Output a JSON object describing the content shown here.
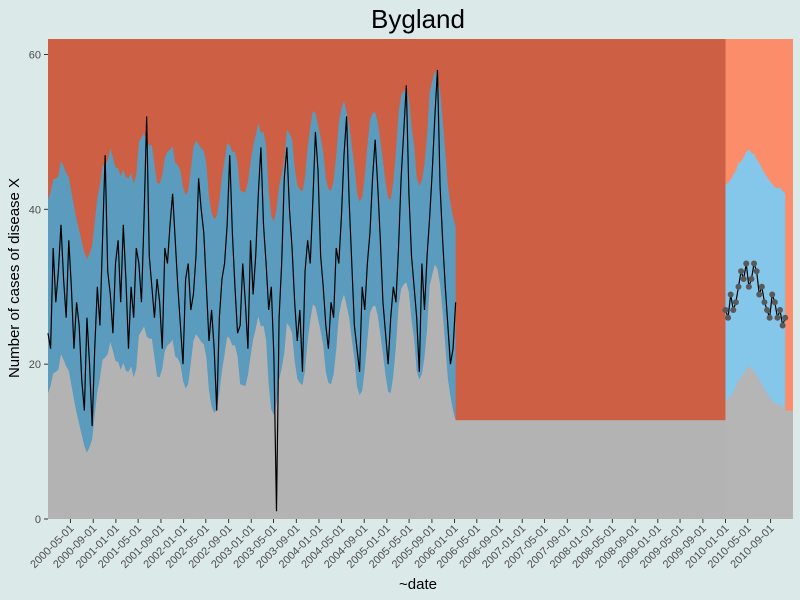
{
  "chart_data": {
    "type": "line",
    "title": "Bygland",
    "xlabel": "~date",
    "ylabel": "Number of cases of disease X",
    "ylim": [
      0,
      62
    ],
    "yticks": [
      0,
      20,
      40,
      60
    ],
    "x_range": [
      "2000-01-01",
      "2010-12-31"
    ],
    "xtick_labels": [
      "2000-05-01",
      "2000-09-01",
      "2001-01-01",
      "2001-05-01",
      "2001-09-01",
      "2002-01-01",
      "2002-05-01",
      "2002-09-01",
      "2003-01-01",
      "2003-05-01",
      "2003-09-01",
      "2004-01-01",
      "2004-05-01",
      "2004-09-01",
      "2005-01-01",
      "2005-05-01",
      "2005-09-01",
      "2006-01-01",
      "2006-05-01",
      "2006-09-01",
      "2007-01-01",
      "2007-05-01",
      "2007-09-01",
      "2008-01-01",
      "2008-05-01",
      "2008-09-01",
      "2009-01-01",
      "2009-05-01",
      "2009-09-01",
      "2010-01-01",
      "2010-05-01",
      "2010-09-01"
    ],
    "forecast_start": "2010-01-01",
    "grid": false,
    "colors": {
      "background": "#dbe9e8",
      "band_low": "#b3b3b3",
      "band_mid": "#5b9bbd",
      "band_high": "#cd5f45",
      "forecast_low": "#b5b5b5",
      "forecast_mid": "#85c7ea",
      "forecast_high": "#fc8d6b",
      "line": "#000000",
      "forecast_points": "#595959"
    },
    "series": [
      {
        "values_sampled_biweekly": [
          24,
          22,
          35,
          28,
          32,
          38,
          31,
          26,
          36,
          30,
          22,
          28,
          25,
          18,
          14,
          26,
          20,
          12,
          22,
          30,
          25,
          36,
          47,
          32,
          29,
          24,
          33,
          36,
          28,
          38,
          31,
          22,
          30,
          26,
          35,
          33,
          28,
          39,
          52,
          34,
          30,
          26,
          31,
          28,
          22,
          35,
          33,
          38,
          42,
          36,
          30,
          25,
          20,
          31,
          33,
          27,
          29,
          34,
          44,
          40,
          37,
          30,
          23,
          27,
          22,
          14,
          26,
          31,
          33,
          38,
          47,
          37,
          30,
          24,
          25,
          33,
          28,
          22,
          36,
          29,
          34,
          42,
          48,
          38,
          33,
          27,
          30,
          21,
          1,
          26,
          33,
          44,
          48,
          40,
          35,
          28,
          23,
          27,
          19,
          32,
          36,
          33,
          41,
          50,
          45,
          34,
          30,
          25,
          22,
          28,
          26,
          35,
          33,
          39,
          47,
          52,
          41,
          33,
          25,
          22,
          19,
          30,
          27,
          33,
          37,
          44,
          49,
          43,
          36,
          28,
          24,
          20,
          26,
          30,
          28,
          35,
          44,
          50,
          56,
          42,
          34,
          30,
          26,
          19,
          33,
          27,
          34,
          39,
          45,
          52,
          58,
          43,
          36,
          30,
          25,
          20,
          22,
          28
        ]
      },
      {
        "name": "forecast",
        "x_start": "2010-01-01",
        "values_sampled_biweekly": [
          27,
          26,
          29,
          27,
          28,
          30,
          32,
          31,
          33,
          30,
          31,
          33,
          32,
          29,
          30,
          28,
          27,
          26,
          29,
          28,
          26,
          27,
          25,
          26
        ]
      }
    ]
  }
}
